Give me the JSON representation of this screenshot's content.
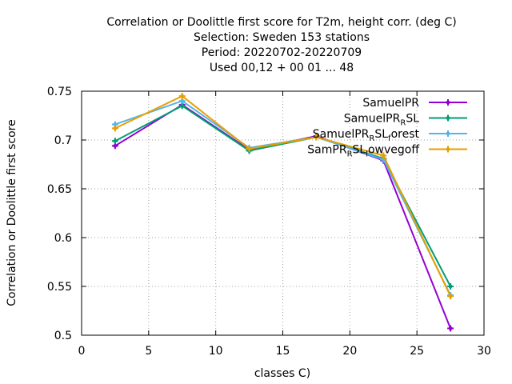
{
  "chart_data": {
    "type": "line",
    "title_lines": [
      "Correlation or Doolittle first score  for T2m, height corr. (deg C)",
      "Selection: Sweden    153 stations",
      "Period: 20220702-20220709",
      "Used  00,12  + 00 01 ... 48"
    ],
    "xlabel": "classes C)",
    "ylabel": "Correlation or Doolittle first score",
    "xlim": [
      0,
      30
    ],
    "ylim": [
      0.5,
      0.75
    ],
    "xticks": [
      0,
      5,
      10,
      15,
      20,
      25,
      30
    ],
    "yticks": [
      0.5,
      0.55,
      0.6,
      0.65,
      0.7,
      0.75
    ],
    "ytick_labels": [
      "0.5",
      "0.55",
      "0.6",
      "0.65",
      "0.7",
      "0.75"
    ],
    "grid": true,
    "legend_position": "top-right",
    "x": [
      2.5,
      7.5,
      12.5,
      17.5,
      22.5,
      27.5
    ],
    "series": [
      {
        "name": "SamuelPR",
        "name_parts": [
          [
            "SamuelPR",
            ""
          ]
        ],
        "color": "#9400d3",
        "values": [
          0.694,
          0.736,
          0.69,
          0.704,
          0.679,
          0.507
        ]
      },
      {
        "name": "SamuelPR_RSL",
        "name_parts": [
          [
            "SamuelPR",
            ""
          ],
          [
            "R",
            "sub"
          ],
          [
            "SL",
            ""
          ]
        ],
        "color": "#009e73",
        "values": [
          0.699,
          0.735,
          0.689,
          0.703,
          0.681,
          0.55
        ]
      },
      {
        "name": "SamuelPR_RSL_forest",
        "name_parts": [
          [
            "SamuelPR",
            ""
          ],
          [
            "R",
            "sub"
          ],
          [
            "SL",
            ""
          ],
          [
            "f",
            "sub"
          ],
          [
            "orest",
            ""
          ]
        ],
        "color": "#56b4e9",
        "values": [
          0.716,
          0.74,
          0.692,
          0.703,
          0.68,
          0.541
        ]
      },
      {
        "name": "SamPR_RSL_lowvegoff",
        "name_parts": [
          [
            "SamPR",
            ""
          ],
          [
            "R",
            "sub"
          ],
          [
            "SL",
            ""
          ],
          [
            "l",
            "sub"
          ],
          [
            "owvegoff",
            ""
          ]
        ],
        "color": "#e69f00",
        "values": [
          0.712,
          0.745,
          0.691,
          0.703,
          0.684,
          0.54
        ]
      }
    ]
  }
}
